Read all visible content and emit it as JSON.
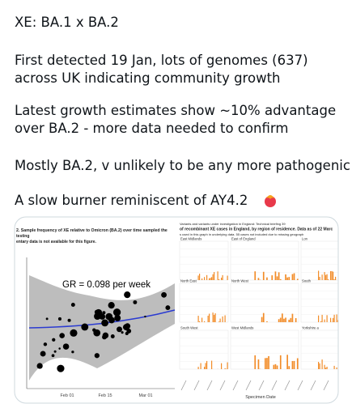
{
  "tweet": {
    "paragraphs": [
      [
        "XE: BA.1 x BA.2"
      ],
      [
        "First detected 19 Jan, lots of genomes (637)",
        "across UK indicating community growth"
      ],
      [
        "Latest growth estimates show ~10% advantage",
        "over BA.2 - more data needed to confirm"
      ],
      [
        "Mostly BA.2, v unlikely to be any more pathogenic"
      ],
      [
        "A slow burner reminiscent of AY4.2"
      ]
    ],
    "images": [
      {
        "header": [
          "2. Sample frequency of XE relative to Omicron (BA.2) over time sampled the",
          "testing",
          "entary data is not available for this figure."
        ],
        "annotation": "GR = 0.098 per week",
        "x_labels": [
          "Feb 01",
          "Feb 15",
          "Mar 01"
        ]
      },
      {
        "header": [
          "Variants and variants under investigation in England: Technical briefing 39",
          "of recombinant XE cases in England, by region of residence. Data as of 22 Marc",
          "s used in this graph in underlying data. 55 cases not included due to missing geograph"
        ],
        "panels": [
          "East Midlands",
          "East of England",
          "Lon",
          "North East",
          "North West",
          "South",
          "South West",
          "West Midlands",
          "Yorkshire a"
        ],
        "x_title": "Specimen Date"
      }
    ]
  }
}
